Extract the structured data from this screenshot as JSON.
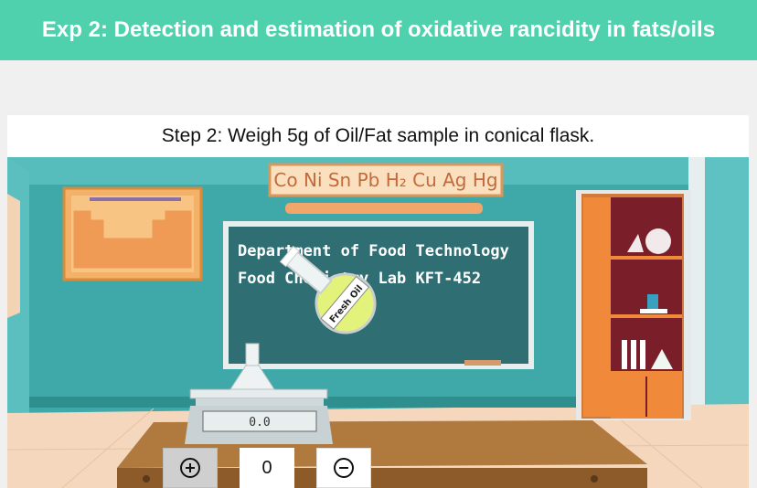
{
  "header": {
    "title": "Exp 2: Detection and estimation of oxidative rancidity in fats/oils"
  },
  "step": {
    "text": "Step 2: Weigh 5g of Oil/Fat sample in conical flask."
  },
  "banner": {
    "symbols": "Co Ni Sn Pb H₂ Cu Ag Hg"
  },
  "board": {
    "line1": "Department of Food Technology",
    "line2": "Food Chemistry Lab  KFT-452"
  },
  "bottle": {
    "label": "Fresh Oil"
  },
  "scale": {
    "reading": "0.0"
  },
  "controls": {
    "count": "0",
    "plus_icon": "plus-circle-icon",
    "minus_icon": "minus-circle-icon"
  },
  "colors": {
    "header": "#4fd1ad",
    "wall": "#3fa9a9",
    "board": "#2f6e73",
    "table": "#b07a3e"
  }
}
